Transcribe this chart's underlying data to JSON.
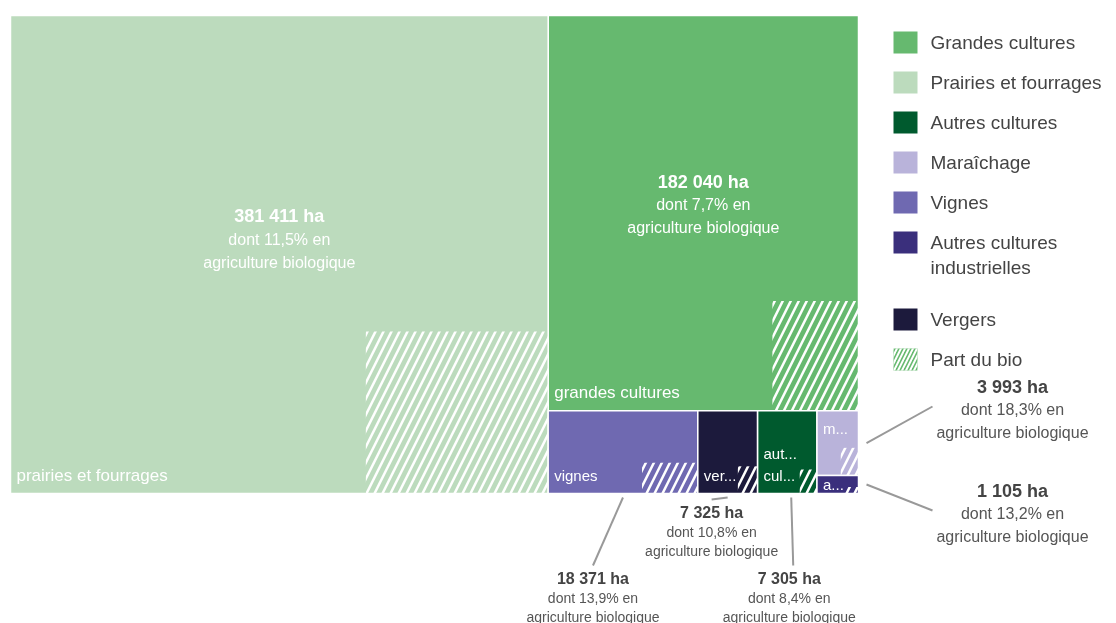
{
  "chart_data": {
    "type": "other",
    "categories": [
      "grandes cultures",
      "prairies et fourrages",
      "aut... cul...",
      "m...",
      "vignes",
      "a...",
      "ver..."
    ],
    "series": [
      {
        "name": "Grandes cultures",
        "color": "#66b96f",
        "values": [
          182040,
          null,
          null,
          null,
          null,
          null,
          null
        ],
        "value_labels": [
          "182 040 ha",
          null,
          null,
          null,
          null,
          null,
          null
        ]
      },
      {
        "name": "Prairies et fourrages",
        "color": "#bcdbbd",
        "values": [
          null,
          381411,
          null,
          null,
          null,
          null,
          null
        ],
        "value_labels": [
          null,
          "381 411 ha",
          null,
          null,
          null,
          null,
          null
        ]
      },
      {
        "name": "Autres cultures",
        "color": "#005a2e",
        "values": [
          null,
          null,
          7305,
          null,
          null,
          null,
          null
        ],
        "value_labels": [
          null,
          null,
          "7 305 ha",
          null,
          null,
          null,
          null
        ]
      },
      {
        "name": "Maraîchage",
        "color": "#b9b3da",
        "values": [
          null,
          null,
          null,
          3993,
          null,
          null,
          null
        ],
        "value_labels": [
          null,
          null,
          null,
          "3 993 ha",
          null,
          null,
          null
        ]
      },
      {
        "name": "Vignes",
        "color": "#6f69b1",
        "values": [
          null,
          null,
          null,
          null,
          18371,
          null,
          null
        ],
        "value_labels": [
          null,
          null,
          null,
          null,
          "18 371 ha",
          null,
          null
        ]
      },
      {
        "name": "Autres cultures industrielles",
        "color": "#3a2f7c",
        "values": [
          null,
          null,
          null,
          null,
          null,
          1105,
          null
        ],
        "value_labels": [
          null,
          null,
          null,
          null,
          null,
          "1 105 ha",
          null
        ]
      },
      {
        "name": "Vergers",
        "color": "#1c1a3c",
        "values": [
          null,
          null,
          null,
          null,
          null,
          null,
          7325
        ],
        "value_labels": [
          null,
          null,
          null,
          null,
          null,
          null,
          "7 325 ha"
        ]
      },
      {
        "name": "Part du bio",
        "color": "#ffffff",
        "values": [
          7.7,
          11.5,
          8.4,
          18.3,
          13.9,
          13.2,
          10.8
        ],
        "value_labels": [
          "dont 7,7% en agriculture biologique",
          "dont 11,5% en agriculture biologique",
          "dont 8,4% en agriculture biologique",
          "dont 18,3% en agriculture biologique",
          "dont 13,9% en agriculture biologique",
          "dont 13,2% en agriculture biologique",
          "dont 10,8% en agriculture biologique"
        ]
      }
    ],
    "legend": "right"
  }
}
